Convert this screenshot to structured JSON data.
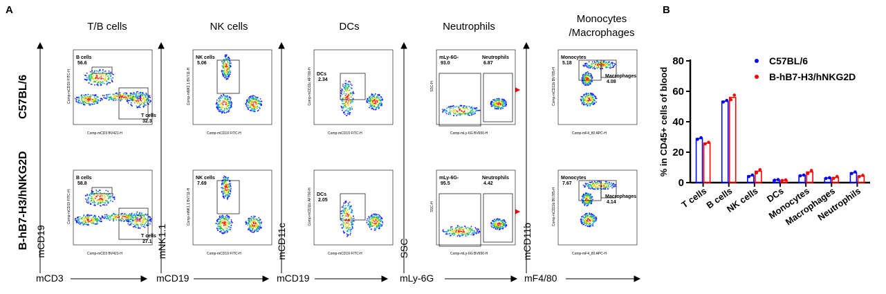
{
  "panel_a_letter": "A",
  "panel_b_letter": "B",
  "columns": [
    "T/B cells",
    "NK cells",
    "DCs",
    "Neutrophils",
    "Monocytes\n/Macrophages"
  ],
  "rows": [
    "C57BL/6",
    "B-hB7-H3/hNKG2D"
  ],
  "y_markers": [
    "mCD19",
    "mNK1.1",
    "mCD11c",
    "SSC",
    "mCD11b"
  ],
  "x_markers": [
    "mCD3",
    "mCD19",
    "mCD19",
    "mLy-6G",
    "mF4/80"
  ],
  "plots": [
    {
      "xlabel": "Comp-mCD3 BV421-H",
      "ylabel": "Comp-mCD19 FITC-H",
      "gates": [
        {
          "name": "B cells",
          "value": "56.6"
        },
        {
          "name": "T cells",
          "value": "32.3"
        }
      ]
    },
    {
      "xlabel": "Comp-mCD19 FITC-H",
      "ylabel": "Comp-mNK1.1 BV711-H",
      "gates": [
        {
          "name": "NK cells",
          "value": "5.06"
        }
      ]
    },
    {
      "xlabel": "Comp-mCD19 FITC-H",
      "ylabel": "Comp-mCD11c AF700-H",
      "gates": [
        {
          "name": "DCs",
          "value": "2.34"
        }
      ]
    },
    {
      "xlabel": "Comp-mLy-6G BV650-H",
      "ylabel": "SSC-H",
      "gates": [
        {
          "name": "mLy-6G-",
          "value": "93.0"
        },
        {
          "name": "Neutrophils",
          "value": "6.87"
        }
      ]
    },
    {
      "xlabel": "Comp-mF4_80 APC-H",
      "ylabel": "Comp-mCD11b BV785-H",
      "gates": [
        {
          "name": "Monocytes",
          "value": "5.18"
        },
        {
          "name": "Macrophages",
          "value": "4.08"
        }
      ]
    },
    {
      "xlabel": "Comp-mCD3 BV421-H",
      "ylabel": "Comp-mCD19 FITC-H",
      "gates": [
        {
          "name": "B cells",
          "value": "58.8"
        },
        {
          "name": "T cells",
          "value": "27.1"
        }
      ]
    },
    {
      "xlabel": "Comp-mCD19 FITC-H",
      "ylabel": "Comp-mNK1.1 BV711-H",
      "gates": [
        {
          "name": "NK cells",
          "value": "7.69"
        }
      ]
    },
    {
      "xlabel": "Comp-mCD19 FITC-H",
      "ylabel": "Comp-mCD11c AF700-H",
      "gates": [
        {
          "name": "DCs",
          "value": "2.05"
        }
      ]
    },
    {
      "xlabel": "Comp-mLy-6G BV650-H",
      "ylabel": "SSC-H",
      "gates": [
        {
          "name": "mLy-6G-",
          "value": "95.5"
        },
        {
          "name": "Neutrophils",
          "value": "4.42"
        }
      ]
    },
    {
      "xlabel": "Comp-mF4_80 APC-H",
      "ylabel": "Comp-mCD11b BV785-H",
      "gates": [
        {
          "name": "Monocytes",
          "value": "7.67"
        },
        {
          "name": "Macrophages",
          "value": "4.14"
        }
      ]
    }
  ],
  "chart_data": {
    "type": "bar",
    "title": "",
    "xlabel": "",
    "ylabel": "% in CD45+ cells of blood",
    "ylim": [
      0,
      80
    ],
    "yticks": [
      0,
      20,
      40,
      60,
      80
    ],
    "categories": [
      "T cells",
      "B cells",
      "NK cells",
      "DCs",
      "Monocytes",
      "Macrophages",
      "Neutrophils"
    ],
    "legend_position": "top-right",
    "series": [
      {
        "name": "C57BL/6",
        "color": "#0000ff",
        "values": [
          29,
          53.5,
          4.5,
          1.8,
          4.8,
          3.0,
          6.5
        ],
        "points": [
          [
            28.5,
            29.5
          ],
          [
            53,
            54
          ],
          [
            4,
            5
          ],
          [
            1.6,
            2
          ],
          [
            4.5,
            5
          ],
          [
            2.8,
            3.2
          ],
          [
            6,
            7
          ]
        ]
      },
      {
        "name": "B-hB7-H3/hNKG2D",
        "color": "#ff0000",
        "values": [
          26,
          56,
          7.5,
          1.6,
          7.0,
          3.4,
          4.4
        ],
        "points": [
          [
            25.5,
            26.5
          ],
          [
            54.5,
            57.5
          ],
          [
            6.5,
            8.5
          ],
          [
            1.4,
            1.8
          ],
          [
            6,
            8
          ],
          [
            2.8,
            4
          ],
          [
            4,
            4.8
          ]
        ]
      }
    ]
  }
}
